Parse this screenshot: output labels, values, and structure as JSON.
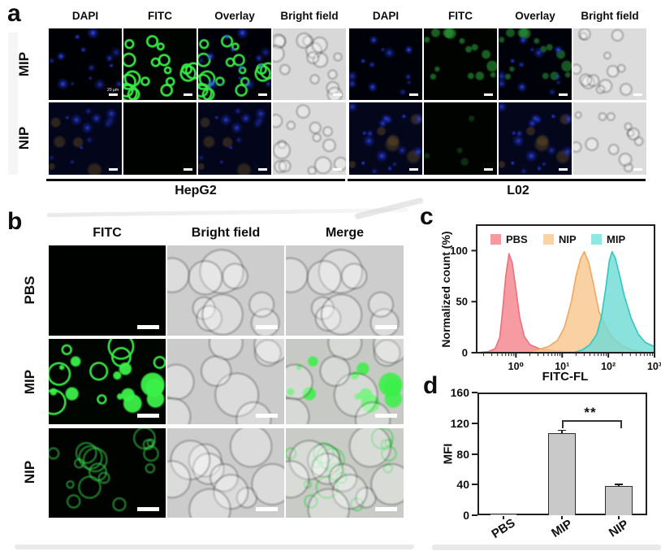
{
  "panel_a": {
    "label": "a",
    "column_headers": [
      "DAPI",
      "FITC",
      "Overlay",
      "Bright field"
    ],
    "row_labels": [
      "MIP",
      "NIP"
    ],
    "groups": [
      {
        "name": "HepG2"
      },
      {
        "name": "L02"
      }
    ],
    "scale_bar_text": "20 μm"
  },
  "panel_b": {
    "label": "b",
    "column_headers": [
      "FITC",
      "Bright field",
      "Merge"
    ],
    "row_labels": [
      "PBS",
      "MIP",
      "NIP"
    ]
  },
  "panel_c": {
    "label": "c"
  },
  "panel_d": {
    "label": "d"
  },
  "chart_data": [
    {
      "type": "area",
      "subtype": "flow-cytometry-histogram",
      "xlabel": "FITC-FL",
      "ylabel": "Normalized count (%)",
      "x_scale": "log10",
      "x_tick_labels": [
        "10⁰",
        "10¹",
        "10²",
        "10³"
      ],
      "x_tick_logvalues": [
        0,
        1,
        2,
        3
      ],
      "xlim_log": [
        -0.85,
        3
      ],
      "y_ticks": [
        0,
        50,
        100
      ],
      "ylim": [
        0,
        125
      ],
      "grid": false,
      "legend_position": "top-inside",
      "series": [
        {
          "name": "PBS",
          "stroke": "#ee6f79",
          "fill": "#f5858d",
          "legend_color": "#f59aa0",
          "peak_logx": -0.15,
          "peak_y": 97,
          "points": [
            [
              -0.85,
              0
            ],
            [
              -0.6,
              1
            ],
            [
              -0.45,
              4
            ],
            [
              -0.35,
              15
            ],
            [
              -0.28,
              45
            ],
            [
              -0.22,
              75
            ],
            [
              -0.15,
              97
            ],
            [
              -0.08,
              88
            ],
            [
              0,
              62
            ],
            [
              0.08,
              35
            ],
            [
              0.18,
              16
            ],
            [
              0.3,
              8
            ],
            [
              0.5,
              4
            ],
            [
              0.8,
              2
            ],
            [
              1.1,
              1
            ],
            [
              1.5,
              0.5
            ],
            [
              1.8,
              0
            ]
          ]
        },
        {
          "name": "NIP",
          "stroke": "#f2a763",
          "fill": "#f8c78f",
          "legend_color": "#fbd2a2",
          "peak_logx": 1.48,
          "peak_y": 99,
          "points": [
            [
              0.1,
              0
            ],
            [
              0.4,
              2
            ],
            [
              0.7,
              6
            ],
            [
              0.9,
              12
            ],
            [
              1.05,
              25
            ],
            [
              1.2,
              50
            ],
            [
              1.3,
              75
            ],
            [
              1.4,
              92
            ],
            [
              1.48,
              99
            ],
            [
              1.58,
              88
            ],
            [
              1.7,
              62
            ],
            [
              1.8,
              40
            ],
            [
              1.95,
              25
            ],
            [
              2.1,
              14
            ],
            [
              2.3,
              7
            ],
            [
              2.5,
              3
            ],
            [
              2.7,
              1
            ],
            [
              2.9,
              0
            ]
          ]
        },
        {
          "name": "MIP",
          "stroke": "#2fc7c0",
          "fill": "#70dcd6",
          "legend_color": "#90e8e2",
          "peak_logx": 2.08,
          "peak_y": 99,
          "points": [
            [
              1.25,
              0
            ],
            [
              1.45,
              3
            ],
            [
              1.6,
              8
            ],
            [
              1.75,
              18
            ],
            [
              1.85,
              35
            ],
            [
              1.95,
              65
            ],
            [
              2.02,
              90
            ],
            [
              2.08,
              99
            ],
            [
              2.15,
              93
            ],
            [
              2.25,
              75
            ],
            [
              2.35,
              55
            ],
            [
              2.5,
              33
            ],
            [
              2.65,
              18
            ],
            [
              2.8,
              10
            ],
            [
              2.9,
              8
            ],
            [
              3,
              6
            ]
          ]
        }
      ]
    },
    {
      "type": "bar",
      "ylabel": "MFI",
      "categories": [
        "PBS",
        "MIP",
        "NIP"
      ],
      "values": [
        1,
        107,
        38
      ],
      "errors": [
        0.5,
        4.5,
        3
      ],
      "y_ticks": [
        0,
        40,
        80,
        120,
        160
      ],
      "ylim": [
        0,
        160
      ],
      "bar_color": "#c9c9c9",
      "bar_edge_color": "#2f2f2f",
      "significance": {
        "between": [
          "MIP",
          "NIP"
        ],
        "label": "**"
      }
    }
  ]
}
